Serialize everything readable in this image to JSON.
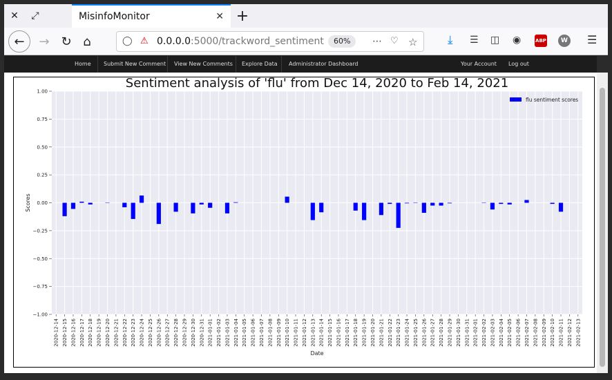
{
  "browser": {
    "tab_title": "MisinfoMonitor",
    "url_host": "0.0.0.0",
    "url_path": ":5000/trackword_sentiment",
    "zoom": "60%",
    "close_glyph": "✕",
    "newtab_glyph": "+",
    "ext_abp": "ABP",
    "ext_w": "W"
  },
  "site_nav": {
    "home": "Home",
    "submit": "Submit New Comment",
    "view": "View New Comments",
    "explore": "Explore Data",
    "admin": "Administrator Dashboard",
    "account": "Your Account",
    "logout": "Log out"
  },
  "chart_data": {
    "type": "bar",
    "title": "Sentiment analysis of 'flu' from Dec 14, 2020 to Feb 14, 2021",
    "xlabel": "Date",
    "ylabel": "Scores",
    "ylim": [
      -1.0,
      1.0
    ],
    "yticks": [
      "1.00",
      "0.75",
      "0.50",
      "0.25",
      "0.00",
      "−0.25",
      "−0.50",
      "−0.75",
      "−1.00"
    ],
    "legend": "flu sentiment scores",
    "legend_position": "top-right",
    "bar_color": "#0000ff",
    "grid": true,
    "categories": [
      "2020-12-14",
      "2020-12-15",
      "2020-12-16",
      "2020-12-17",
      "2020-12-18",
      "2020-12-19",
      "2020-12-20",
      "2020-12-21",
      "2020-12-22",
      "2020-12-23",
      "2020-12-24",
      "2020-12-25",
      "2020-12-26",
      "2020-12-27",
      "2020-12-28",
      "2020-12-29",
      "2020-12-30",
      "2020-12-31",
      "2021-01-01",
      "2021-01-02",
      "2021-01-03",
      "2021-01-04",
      "2021-01-05",
      "2021-01-06",
      "2021-01-07",
      "2021-01-08",
      "2021-01-09",
      "2021-01-10",
      "2021-01-11",
      "2021-01-12",
      "2021-01-13",
      "2021-01-14",
      "2021-01-15",
      "2021-01-16",
      "2021-01-17",
      "2021-01-18",
      "2021-01-19",
      "2021-01-20",
      "2021-01-21",
      "2021-01-22",
      "2021-01-23",
      "2021-01-24",
      "2021-01-25",
      "2021-01-26",
      "2021-01-27",
      "2021-01-28",
      "2021-01-29",
      "2021-01-30",
      "2021-01-31",
      "2021-02-01",
      "2021-02-02",
      "2021-02-03",
      "2021-02-04",
      "2021-02-05",
      "2021-02-06",
      "2021-02-07",
      "2021-02-08",
      "2021-02-09",
      "2021-02-10",
      "2021-02-11",
      "2021-02-12",
      "2021-02-13"
    ],
    "values": [
      0,
      -0.12,
      -0.055,
      0.01,
      -0.015,
      0,
      0.003,
      0,
      -0.04,
      -0.145,
      0.065,
      0,
      -0.19,
      0,
      -0.08,
      0,
      -0.095,
      -0.015,
      -0.045,
      0,
      -0.095,
      0.005,
      0,
      0,
      0,
      0,
      0,
      0.055,
      0,
      0,
      -0.155,
      -0.085,
      0,
      0,
      0,
      -0.07,
      -0.155,
      0,
      -0.11,
      -0.01,
      -0.225,
      -0.005,
      -0.003,
      -0.09,
      -0.025,
      -0.025,
      -0.005,
      0,
      0,
      0,
      0.003,
      -0.06,
      -0.01,
      -0.015,
      0,
      0.025,
      0,
      0,
      -0.01,
      -0.08,
      0,
      0
    ]
  }
}
